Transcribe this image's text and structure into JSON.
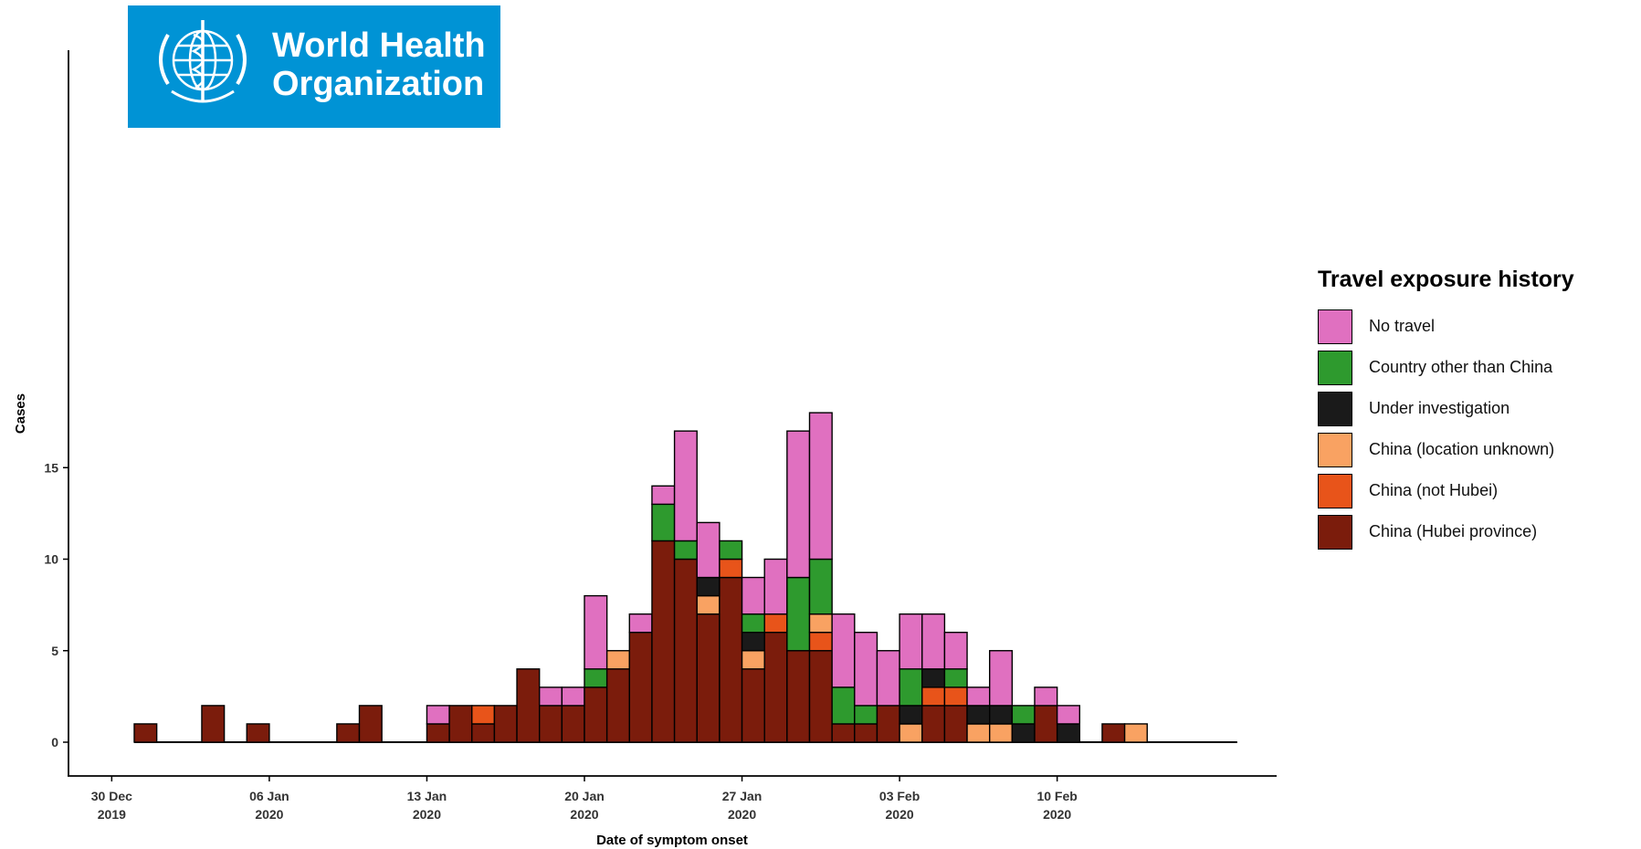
{
  "logo": {
    "line1": "World Health",
    "line2": "Organization",
    "bg_color": "#0093d5"
  },
  "chart_data": {
    "type": "bar",
    "stacked": true,
    "xlabel": "Date of symptom onset",
    "ylabel": "Cases",
    "ylim": [
      0,
      18
    ],
    "yticks": [
      0,
      5,
      10,
      15
    ],
    "x_start": "2019-12-31",
    "x_end": "2020-02-18",
    "x_ticks": [
      {
        "date": "2019-12-30",
        "line1": "30 Dec",
        "line2": "2019"
      },
      {
        "date": "2020-01-06",
        "line1": "06 Jan",
        "line2": "2020"
      },
      {
        "date": "2020-01-13",
        "line1": "13 Jan",
        "line2": "2020"
      },
      {
        "date": "2020-01-20",
        "line1": "20 Jan",
        "line2": "2020"
      },
      {
        "date": "2020-01-27",
        "line1": "27 Jan",
        "line2": "2020"
      },
      {
        "date": "2020-02-03",
        "line1": "03 Feb",
        "line2": "2020"
      },
      {
        "date": "2020-02-10",
        "line1": "10 Feb",
        "line2": "2020"
      }
    ],
    "legend": {
      "title": "Travel exposure history",
      "position": "right"
    },
    "categories": [
      "2019-12-31",
      "2020-01-01",
      "2020-01-02",
      "2020-01-03",
      "2020-01-04",
      "2020-01-05",
      "2020-01-06",
      "2020-01-07",
      "2020-01-08",
      "2020-01-09",
      "2020-01-10",
      "2020-01-11",
      "2020-01-12",
      "2020-01-13",
      "2020-01-14",
      "2020-01-15",
      "2020-01-16",
      "2020-01-17",
      "2020-01-18",
      "2020-01-19",
      "2020-01-20",
      "2020-01-21",
      "2020-01-22",
      "2020-01-23",
      "2020-01-24",
      "2020-01-25",
      "2020-01-26",
      "2020-01-27",
      "2020-01-28",
      "2020-01-29",
      "2020-01-30",
      "2020-01-31",
      "2020-02-01",
      "2020-02-02",
      "2020-02-03",
      "2020-02-04",
      "2020-02-05",
      "2020-02-06",
      "2020-02-07",
      "2020-02-08",
      "2020-02-09",
      "2020-02-10",
      "2020-02-11",
      "2020-02-12",
      "2020-02-13"
    ],
    "series": [
      {
        "name": "China (Hubei province)",
        "color": "#7b1c0c",
        "values": [
          1,
          0,
          0,
          2,
          0,
          1,
          0,
          0,
          0,
          1,
          2,
          0,
          0,
          1,
          2,
          1,
          2,
          4,
          2,
          2,
          3,
          4,
          6,
          11,
          10,
          7,
          9,
          4,
          6,
          5,
          5,
          1,
          1,
          2,
          0,
          2,
          2,
          0,
          0,
          0,
          2,
          0,
          0,
          1,
          0
        ]
      },
      {
        "name": "China (not Hubei)",
        "color": "#e8541a",
        "values": [
          0,
          0,
          0,
          0,
          0,
          0,
          0,
          0,
          0,
          0,
          0,
          0,
          0,
          0,
          0,
          1,
          0,
          0,
          0,
          0,
          0,
          0,
          0,
          0,
          0,
          0,
          1,
          0,
          1,
          0,
          1,
          0,
          0,
          0,
          0,
          1,
          1,
          0,
          0,
          0,
          0,
          0,
          0,
          0,
          0
        ]
      },
      {
        "name": "China (location unknown)",
        "color": "#f9a262",
        "values": [
          0,
          0,
          0,
          0,
          0,
          0,
          0,
          0,
          0,
          0,
          0,
          0,
          0,
          0,
          0,
          0,
          0,
          0,
          0,
          0,
          0,
          1,
          0,
          0,
          0,
          1,
          0,
          1,
          0,
          0,
          1,
          0,
          0,
          0,
          1,
          0,
          0,
          1,
          1,
          0,
          0,
          0,
          0,
          0,
          1
        ]
      },
      {
        "name": "Under investigation",
        "color": "#1a1a1a",
        "values": [
          0,
          0,
          0,
          0,
          0,
          0,
          0,
          0,
          0,
          0,
          0,
          0,
          0,
          0,
          0,
          0,
          0,
          0,
          0,
          0,
          0,
          0,
          0,
          0,
          0,
          1,
          0,
          1,
          0,
          0,
          0,
          0,
          0,
          0,
          1,
          1,
          0,
          1,
          1,
          1,
          0,
          1,
          0,
          0,
          0
        ]
      },
      {
        "name": "Country other than China",
        "color": "#2e9a2e",
        "values": [
          0,
          0,
          0,
          0,
          0,
          0,
          0,
          0,
          0,
          0,
          0,
          0,
          0,
          0,
          0,
          0,
          0,
          0,
          0,
          0,
          1,
          0,
          0,
          2,
          1,
          0,
          1,
          1,
          0,
          4,
          3,
          2,
          1,
          0,
          2,
          0,
          1,
          0,
          0,
          1,
          0,
          0,
          0,
          0,
          0
        ]
      },
      {
        "name": "No travel",
        "color": "#e070c0",
        "values": [
          0,
          0,
          0,
          0,
          0,
          0,
          0,
          0,
          0,
          0,
          0,
          0,
          0,
          1,
          0,
          0,
          0,
          0,
          1,
          1,
          4,
          0,
          1,
          1,
          6,
          3,
          0,
          2,
          3,
          8,
          8,
          4,
          4,
          3,
          3,
          3,
          2,
          1,
          3,
          0,
          1,
          1,
          0,
          0,
          0
        ]
      }
    ],
    "legend_order": [
      "No travel",
      "Country other than China",
      "Under investigation",
      "China (location unknown)",
      "China (not Hubei)",
      "China (Hubei province)"
    ]
  }
}
